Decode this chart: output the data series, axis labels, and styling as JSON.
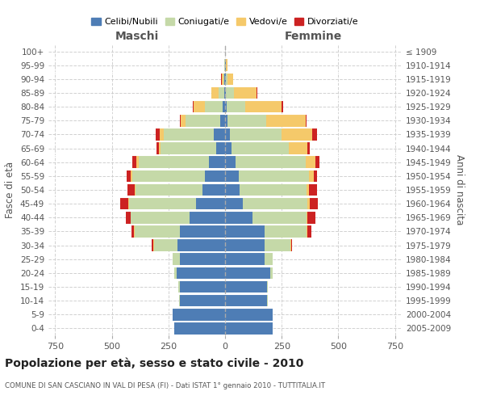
{
  "age_groups": [
    "0-4",
    "5-9",
    "10-14",
    "15-19",
    "20-24",
    "25-29",
    "30-34",
    "35-39",
    "40-44",
    "45-49",
    "50-54",
    "55-59",
    "60-64",
    "65-69",
    "70-74",
    "75-79",
    "80-84",
    "85-89",
    "90-94",
    "95-99",
    "100+"
  ],
  "birth_years": [
    "2005-2009",
    "2000-2004",
    "1995-1999",
    "1990-1994",
    "1985-1989",
    "1980-1984",
    "1975-1979",
    "1970-1974",
    "1965-1969",
    "1960-1964",
    "1955-1959",
    "1950-1954",
    "1945-1949",
    "1940-1944",
    "1935-1939",
    "1930-1934",
    "1925-1929",
    "1920-1924",
    "1915-1919",
    "1910-1914",
    "≤ 1909"
  ],
  "male": {
    "celibi": [
      225,
      230,
      200,
      200,
      215,
      200,
      210,
      200,
      155,
      130,
      100,
      90,
      70,
      40,
      50,
      20,
      10,
      5,
      2,
      0,
      0
    ],
    "coniugati": [
      0,
      0,
      2,
      5,
      10,
      30,
      105,
      200,
      260,
      295,
      295,
      320,
      310,
      245,
      220,
      155,
      80,
      25,
      5,
      2,
      0
    ],
    "vedovi": [
      0,
      0,
      0,
      0,
      0,
      0,
      2,
      2,
      2,
      3,
      5,
      5,
      12,
      8,
      20,
      20,
      50,
      30,
      8,
      2,
      0
    ],
    "divorziati": [
      0,
      0,
      0,
      0,
      0,
      2,
      8,
      12,
      20,
      35,
      30,
      18,
      18,
      10,
      18,
      5,
      2,
      2,
      2,
      0,
      0
    ]
  },
  "female": {
    "nubili": [
      210,
      210,
      185,
      185,
      200,
      175,
      175,
      175,
      120,
      80,
      65,
      60,
      45,
      30,
      20,
      10,
      8,
      5,
      2,
      2,
      0
    ],
    "coniugate": [
      0,
      0,
      2,
      5,
      10,
      35,
      115,
      185,
      240,
      285,
      295,
      310,
      310,
      250,
      230,
      170,
      80,
      35,
      8,
      2,
      0
    ],
    "vedove": [
      0,
      0,
      0,
      0,
      0,
      0,
      2,
      2,
      5,
      8,
      10,
      20,
      45,
      85,
      135,
      175,
      160,
      100,
      25,
      5,
      0
    ],
    "divorziate": [
      0,
      0,
      0,
      0,
      0,
      0,
      5,
      20,
      35,
      35,
      35,
      15,
      18,
      8,
      20,
      5,
      8,
      2,
      2,
      2,
      0
    ]
  },
  "colors": {
    "celibi_nubili": "#4e7db5",
    "coniugati": "#c5d9a8",
    "vedovi": "#f5c96a",
    "divorziati": "#cc2222"
  },
  "title": "Popolazione per età, sesso e stato civile - 2010",
  "subtitle": "COMUNE DI SAN CASCIANO IN VAL DI PESA (FI) - Dati ISTAT 1° gennaio 2010 - TUTTITALIA.IT",
  "xlabel_left": "Maschi",
  "xlabel_right": "Femmine",
  "ylabel_left": "Fasce di età",
  "ylabel_right": "Anni di nascita",
  "xlim": 780,
  "legend_labels": [
    "Celibi/Nubili",
    "Coniugati/e",
    "Vedovi/e",
    "Divorziati/e"
  ],
  "background_color": "#ffffff",
  "grid_color": "#cccccc"
}
